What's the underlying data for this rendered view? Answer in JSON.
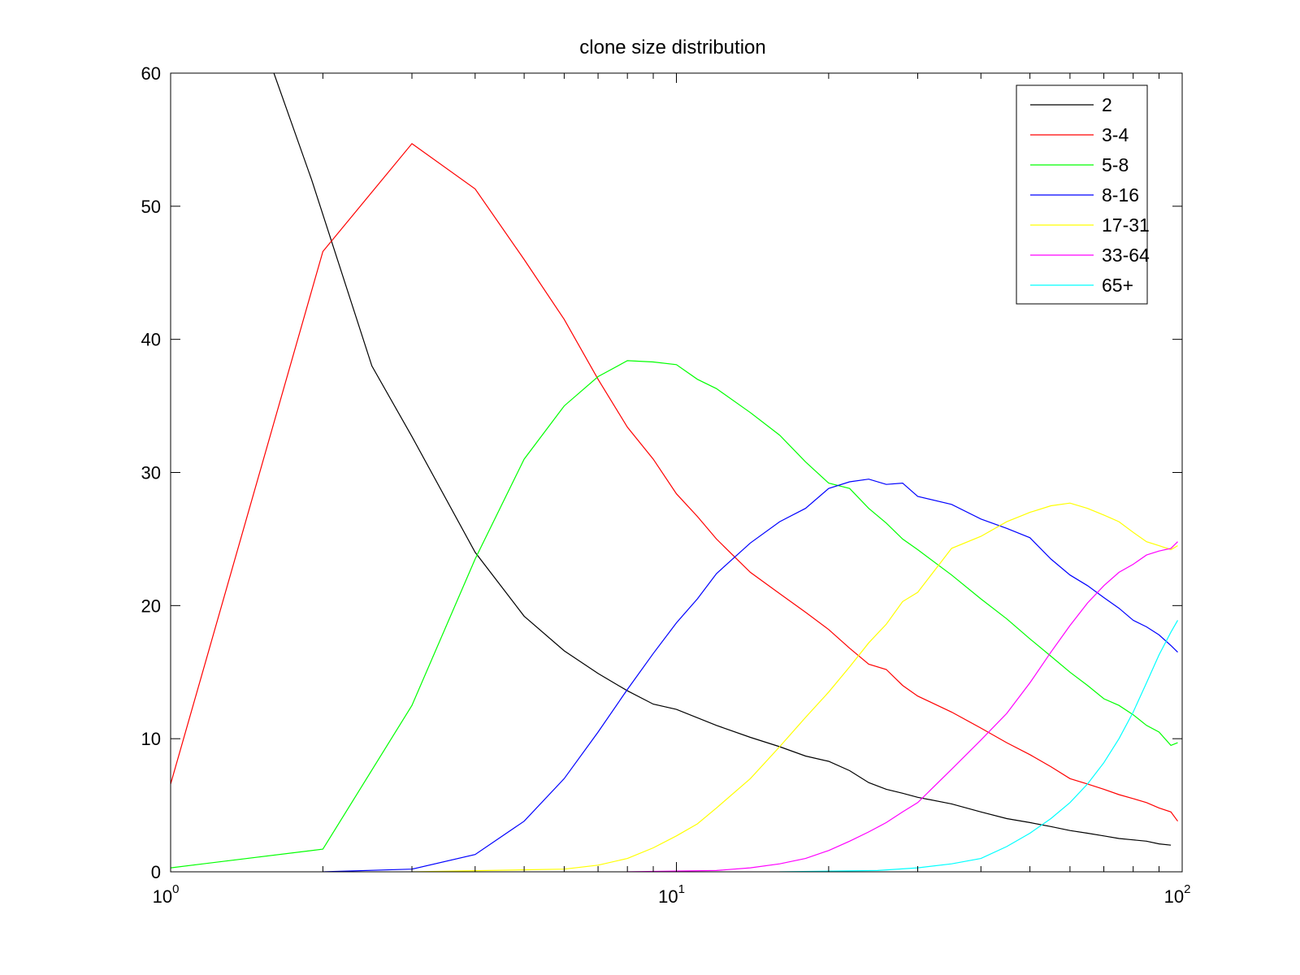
{
  "chart_data": {
    "type": "line",
    "title": "clone size distribution",
    "xscale": "log",
    "xlim": [
      1,
      100
    ],
    "ylim": [
      0,
      60
    ],
    "xticks": [
      {
        "value": 1,
        "base": "10",
        "exp": "0"
      },
      {
        "value": 10,
        "base": "10",
        "exp": "1"
      },
      {
        "value": 100,
        "base": "10",
        "exp": "2"
      }
    ],
    "yticks": [
      "0",
      "10",
      "20",
      "30",
      "40",
      "50",
      "60"
    ],
    "grid": false,
    "legend_position": "top-right",
    "series": [
      {
        "name": "2",
        "color": "#000000",
        "points": [
          [
            1,
            64
          ],
          [
            1.6,
            60
          ],
          [
            1.9,
            52
          ],
          [
            2.5,
            38
          ],
          [
            3,
            32.7
          ],
          [
            4,
            24
          ],
          [
            5,
            19.2
          ],
          [
            6,
            16.6
          ],
          [
            7,
            14.9
          ],
          [
            8,
            13.6
          ],
          [
            9,
            12.6
          ],
          [
            10,
            12.2
          ],
          [
            12,
            11.0
          ],
          [
            14,
            10.1
          ],
          [
            16,
            9.4
          ],
          [
            18,
            8.7
          ],
          [
            20,
            8.3
          ],
          [
            22,
            7.6
          ],
          [
            24,
            6.7
          ],
          [
            26,
            6.2
          ],
          [
            28,
            5.9
          ],
          [
            30,
            5.6
          ],
          [
            35,
            5.1
          ],
          [
            40,
            4.5
          ],
          [
            45,
            4.0
          ],
          [
            50,
            3.7
          ],
          [
            55,
            3.4
          ],
          [
            60,
            3.1
          ],
          [
            65,
            2.9
          ],
          [
            70,
            2.7
          ],
          [
            75,
            2.5
          ],
          [
            80,
            2.4
          ],
          [
            85,
            2.3
          ],
          [
            90,
            2.1
          ],
          [
            95,
            2.0
          ]
        ]
      },
      {
        "name": "3-4",
        "color": "#ff0000",
        "points": [
          [
            1,
            6.6
          ],
          [
            2,
            46.6
          ],
          [
            3,
            54.7
          ],
          [
            4,
            51.3
          ],
          [
            5,
            46.0
          ],
          [
            6,
            41.5
          ],
          [
            7,
            37.0
          ],
          [
            8,
            33.4
          ],
          [
            9,
            31.0
          ],
          [
            10,
            28.4
          ],
          [
            11,
            26.7
          ],
          [
            12,
            25.0
          ],
          [
            14,
            22.5
          ],
          [
            16,
            20.9
          ],
          [
            18,
            19.5
          ],
          [
            20,
            18.2
          ],
          [
            22,
            16.8
          ],
          [
            24,
            15.6
          ],
          [
            26,
            15.2
          ],
          [
            28,
            14.0
          ],
          [
            30,
            13.2
          ],
          [
            35,
            12.0
          ],
          [
            40,
            10.8
          ],
          [
            45,
            9.7
          ],
          [
            50,
            8.8
          ],
          [
            55,
            7.9
          ],
          [
            60,
            7.0
          ],
          [
            65,
            6.6
          ],
          [
            70,
            6.2
          ],
          [
            75,
            5.8
          ],
          [
            80,
            5.5
          ],
          [
            85,
            5.2
          ],
          [
            90,
            4.8
          ],
          [
            95,
            4.5
          ],
          [
            98,
            3.8
          ]
        ]
      },
      {
        "name": "5-8",
        "color": "#00ff00",
        "points": [
          [
            1,
            0.3
          ],
          [
            2,
            1.7
          ],
          [
            3,
            12.5
          ],
          [
            4,
            23.5
          ],
          [
            5,
            31.0
          ],
          [
            6,
            35.0
          ],
          [
            7,
            37.2
          ],
          [
            8,
            38.4
          ],
          [
            9,
            38.3
          ],
          [
            10,
            38.1
          ],
          [
            11,
            37.0
          ],
          [
            12,
            36.3
          ],
          [
            14,
            34.5
          ],
          [
            16,
            32.8
          ],
          [
            18,
            30.8
          ],
          [
            20,
            29.2
          ],
          [
            22,
            28.8
          ],
          [
            24,
            27.3
          ],
          [
            26,
            26.2
          ],
          [
            28,
            25.0
          ],
          [
            30,
            24.2
          ],
          [
            35,
            22.3
          ],
          [
            40,
            20.5
          ],
          [
            45,
            19.0
          ],
          [
            50,
            17.5
          ],
          [
            55,
            16.2
          ],
          [
            60,
            15.0
          ],
          [
            65,
            14.0
          ],
          [
            70,
            13.0
          ],
          [
            75,
            12.5
          ],
          [
            80,
            11.8
          ],
          [
            85,
            11.0
          ],
          [
            90,
            10.5
          ],
          [
            95,
            9.5
          ],
          [
            98,
            9.7
          ]
        ]
      },
      {
        "name": "8-16",
        "color": "#0000ff",
        "points": [
          [
            2,
            0.0
          ],
          [
            3,
            0.2
          ],
          [
            4,
            1.3
          ],
          [
            5,
            3.8
          ],
          [
            6,
            7.0
          ],
          [
            7,
            10.5
          ],
          [
            8,
            13.7
          ],
          [
            9,
            16.4
          ],
          [
            10,
            18.7
          ],
          [
            11,
            20.5
          ],
          [
            12,
            22.4
          ],
          [
            14,
            24.7
          ],
          [
            16,
            26.3
          ],
          [
            18,
            27.3
          ],
          [
            20,
            28.8
          ],
          [
            22,
            29.3
          ],
          [
            24,
            29.5
          ],
          [
            26,
            29.1
          ],
          [
            28,
            29.2
          ],
          [
            30,
            28.2
          ],
          [
            35,
            27.6
          ],
          [
            40,
            26.5
          ],
          [
            45,
            25.8
          ],
          [
            50,
            25.1
          ],
          [
            55,
            23.5
          ],
          [
            60,
            22.3
          ],
          [
            65,
            21.5
          ],
          [
            70,
            20.6
          ],
          [
            75,
            19.8
          ],
          [
            80,
            18.9
          ],
          [
            85,
            18.4
          ],
          [
            90,
            17.8
          ],
          [
            95,
            17.0
          ],
          [
            98,
            16.5
          ]
        ]
      },
      {
        "name": "17-31",
        "color": "#ffff00",
        "points": [
          [
            3,
            0.0
          ],
          [
            6,
            0.2
          ],
          [
            7,
            0.5
          ],
          [
            8,
            1.0
          ],
          [
            9,
            1.8
          ],
          [
            10,
            2.7
          ],
          [
            11,
            3.6
          ],
          [
            12,
            4.8
          ],
          [
            14,
            7.0
          ],
          [
            16,
            9.4
          ],
          [
            18,
            11.6
          ],
          [
            20,
            13.5
          ],
          [
            22,
            15.4
          ],
          [
            24,
            17.2
          ],
          [
            26,
            18.6
          ],
          [
            28,
            20.3
          ],
          [
            30,
            21.0
          ],
          [
            35,
            24.3
          ],
          [
            40,
            25.2
          ],
          [
            45,
            26.3
          ],
          [
            50,
            27.0
          ],
          [
            55,
            27.5
          ],
          [
            60,
            27.7
          ],
          [
            65,
            27.3
          ],
          [
            70,
            26.8
          ],
          [
            75,
            26.3
          ],
          [
            80,
            25.5
          ],
          [
            85,
            24.8
          ],
          [
            90,
            24.5
          ],
          [
            95,
            24.2
          ],
          [
            98,
            24.5
          ]
        ]
      },
      {
        "name": "33-64",
        "color": "#ff00ff",
        "points": [
          [
            8,
            0.0
          ],
          [
            12,
            0.1
          ],
          [
            14,
            0.3
          ],
          [
            16,
            0.6
          ],
          [
            18,
            1.0
          ],
          [
            20,
            1.6
          ],
          [
            22,
            2.3
          ],
          [
            24,
            3.0
          ],
          [
            26,
            3.7
          ],
          [
            28,
            4.5
          ],
          [
            30,
            5.2
          ],
          [
            35,
            7.7
          ],
          [
            40,
            9.9
          ],
          [
            45,
            11.9
          ],
          [
            50,
            14.2
          ],
          [
            55,
            16.5
          ],
          [
            60,
            18.5
          ],
          [
            65,
            20.2
          ],
          [
            70,
            21.5
          ],
          [
            75,
            22.5
          ],
          [
            80,
            23.1
          ],
          [
            85,
            23.8
          ],
          [
            90,
            24.1
          ],
          [
            95,
            24.3
          ],
          [
            98,
            24.8
          ]
        ]
      },
      {
        "name": "65+",
        "color": "#00ffff",
        "points": [
          [
            16,
            0.0
          ],
          [
            25,
            0.1
          ],
          [
            30,
            0.3
          ],
          [
            35,
            0.6
          ],
          [
            40,
            1.0
          ],
          [
            45,
            1.9
          ],
          [
            50,
            2.9
          ],
          [
            55,
            4.0
          ],
          [
            60,
            5.2
          ],
          [
            65,
            6.6
          ],
          [
            70,
            8.2
          ],
          [
            75,
            10.0
          ],
          [
            80,
            12.0
          ],
          [
            85,
            14.2
          ],
          [
            90,
            16.3
          ],
          [
            95,
            18.0
          ],
          [
            98,
            18.9
          ]
        ]
      }
    ]
  }
}
